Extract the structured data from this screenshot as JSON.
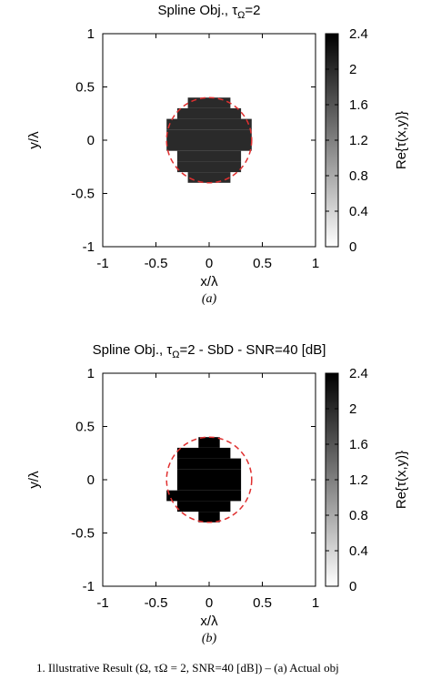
{
  "chart_data": [
    {
      "type": "heatmap",
      "panel_label": "(a)",
      "title_main": "Spline Obj., τ",
      "title_sub": "Ω",
      "title_rest": "=2",
      "xlabel": "x/λ",
      "ylabel": "y/λ",
      "xlim": [
        -1,
        1
      ],
      "ylim": [
        -1,
        1
      ],
      "xticks": [
        "-1",
        "-0.5",
        "0",
        "0.5",
        "1"
      ],
      "yticks": [
        "1",
        "0.5",
        "0",
        "-0.5",
        "-1"
      ],
      "colorbar_label": "Re{τ(x,y)}",
      "colorbar_ticks": [
        "2.4",
        "2",
        "1.6",
        "1.2",
        "0.8",
        "0.4",
        "0"
      ],
      "colorbar_range": [
        0,
        2.4
      ],
      "object_value": 2.0,
      "reference_contour": {
        "type": "circle",
        "center": [
          0,
          0
        ],
        "radius": 0.4,
        "color": "#e03030"
      },
      "cells": [
        [
          -0.2,
          0.4,
          0.2,
          0.3
        ],
        [
          -0.3,
          0.3,
          0.3,
          0.2
        ],
        [
          -0.4,
          0.2,
          0.4,
          0.1
        ],
        [
          -0.4,
          0.1,
          0.4,
          0.0
        ],
        [
          -0.4,
          0.0,
          0.4,
          -0.1
        ],
        [
          -0.3,
          -0.1,
          0.3,
          -0.2
        ],
        [
          -0.3,
          -0.2,
          0.3,
          -0.3
        ],
        [
          -0.2,
          -0.3,
          0.2,
          -0.4
        ]
      ]
    },
    {
      "type": "heatmap",
      "panel_label": "(b)",
      "title_main": "Spline Obj., τ",
      "title_sub": "Ω",
      "title_rest": "=2 - SbD - SNR=40 [dB]",
      "xlabel": "x/λ",
      "ylabel": "y/λ",
      "xlim": [
        -1,
        1
      ],
      "ylim": [
        -1,
        1
      ],
      "xticks": [
        "-1",
        "-0.5",
        "0",
        "0.5",
        "1"
      ],
      "yticks": [
        "1",
        "0.5",
        "0",
        "-0.5",
        "-1"
      ],
      "colorbar_label": "Re{τ(x,y)}",
      "colorbar_ticks": [
        "2.4",
        "2",
        "1.6",
        "1.2",
        "0.8",
        "0.4",
        "0"
      ],
      "colorbar_range": [
        0,
        2.4
      ],
      "object_value": 2.4,
      "reference_contour": {
        "type": "circle",
        "center": [
          0,
          0
        ],
        "radius": 0.4,
        "color": "#e03030"
      },
      "cells": [
        [
          -0.1,
          0.4,
          0.1,
          0.3
        ],
        [
          -0.3,
          0.3,
          0.2,
          0.2
        ],
        [
          -0.3,
          0.2,
          0.3,
          0.1
        ],
        [
          -0.3,
          0.1,
          0.3,
          0.0
        ],
        [
          -0.3,
          0.0,
          0.3,
          -0.1
        ],
        [
          -0.4,
          -0.1,
          0.3,
          -0.2
        ],
        [
          -0.3,
          -0.2,
          0.2,
          -0.3
        ],
        [
          -0.1,
          -0.3,
          0.1,
          -0.4
        ]
      ]
    }
  ],
  "caption_text": "1.  Illustrative Result (Ω, τΩ = 2, SNR=40 [dB]) – (a) Actual obj"
}
